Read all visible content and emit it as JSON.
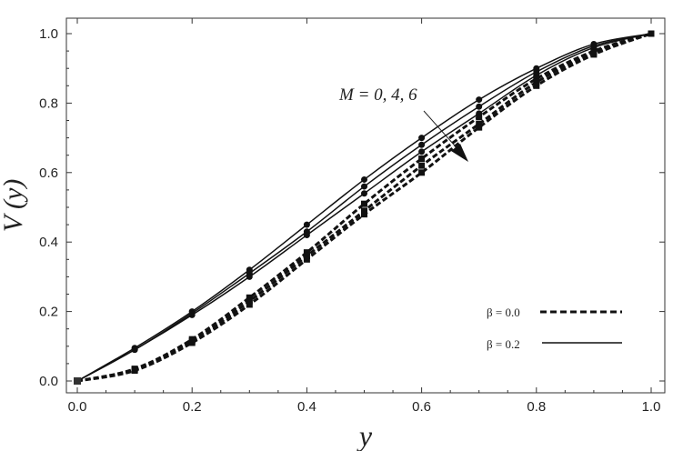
{
  "chart_data": {
    "type": "line",
    "title": "",
    "xlabel": "y",
    "ylabel": "V (y)",
    "xlim": [
      0,
      1
    ],
    "ylim": [
      0,
      1
    ],
    "x": [
      0,
      0.1,
      0.2,
      0.3,
      0.4,
      0.5,
      0.6,
      0.7,
      0.8,
      0.9,
      1.0
    ],
    "xticks": [
      "0.0",
      "0.2",
      "0.4",
      "0.6",
      "0.8",
      "1.0"
    ],
    "yticks": [
      "0.0",
      "0.2",
      "0.4",
      "0.6",
      "0.8",
      "1.0"
    ],
    "grid": false,
    "legend_position": "bottom-right",
    "legend": [
      {
        "label": "β = 0.0",
        "style": "dashed"
      },
      {
        "label": "β = 0.2",
        "style": "solid"
      }
    ],
    "annotation": "M = 0, 4, 6",
    "series": [
      {
        "name": "β=0.2, M=0",
        "style": "solid",
        "values": [
          0,
          0.095,
          0.2,
          0.32,
          0.45,
          0.58,
          0.7,
          0.81,
          0.9,
          0.97,
          1.0
        ]
      },
      {
        "name": "β=0.2, M=4",
        "style": "solid",
        "values": [
          0,
          0.09,
          0.195,
          0.31,
          0.43,
          0.56,
          0.68,
          0.79,
          0.89,
          0.965,
          1.0
        ]
      },
      {
        "name": "β=0.2, M=6",
        "style": "solid",
        "values": [
          0,
          0.09,
          0.19,
          0.3,
          0.42,
          0.54,
          0.66,
          0.77,
          0.88,
          0.96,
          1.0
        ]
      },
      {
        "name": "β=0.0, M=0",
        "style": "dashed",
        "values": [
          0,
          0.035,
          0.12,
          0.24,
          0.37,
          0.51,
          0.64,
          0.76,
          0.87,
          0.95,
          1.0
        ]
      },
      {
        "name": "β=0.0, M=4",
        "style": "dashed",
        "values": [
          0,
          0.033,
          0.115,
          0.23,
          0.36,
          0.49,
          0.62,
          0.74,
          0.86,
          0.945,
          1.0
        ]
      },
      {
        "name": "β=0.0, M=6",
        "style": "dashed",
        "values": [
          0,
          0.03,
          0.11,
          0.22,
          0.35,
          0.48,
          0.6,
          0.73,
          0.85,
          0.94,
          1.0
        ]
      }
    ]
  }
}
